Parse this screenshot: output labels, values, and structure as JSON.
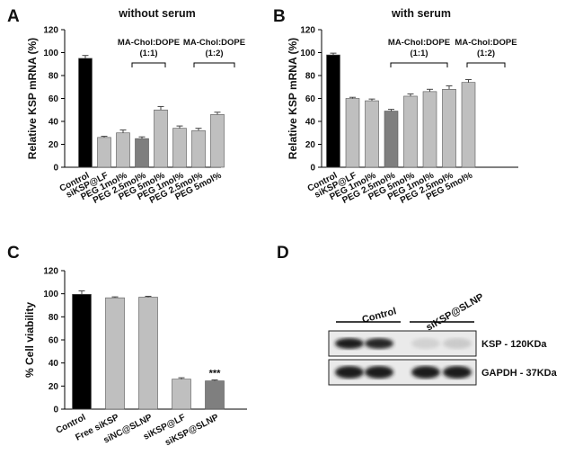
{
  "chart_data": [
    {
      "panel": "A",
      "type": "bar",
      "title": "without serum",
      "ylabel": "Relative KSP mRNA (%)",
      "ylim": [
        0,
        120
      ],
      "yticks": [
        0,
        20,
        40,
        60,
        80,
        100,
        120
      ],
      "categories": [
        "Control",
        "siKSP@LF",
        "PEG 1mol%",
        "PEG 2.5mol%",
        "PEG 5mol%",
        "PEG 1mol%",
        "PEG 2.5mol%",
        "PEG 5mol%"
      ],
      "values": [
        95,
        26,
        30,
        25,
        50,
        34,
        32,
        46
      ],
      "errors": [
        2.5,
        1,
        2.5,
        1.5,
        3,
        2,
        2,
        2
      ],
      "colors": [
        "#000000",
        "#bfbfbf",
        "#bfbfbf",
        "#7f7f7f",
        "#bfbfbf",
        "#bfbfbf",
        "#bfbfbf",
        "#bfbfbf"
      ],
      "groups": [
        {
          "label": "MA-Chol:DOPE",
          "sublabel": "(1:1)",
          "from": 2,
          "to": 4
        },
        {
          "label": "MA-Chol:DOPE",
          "sublabel": "(1:2)",
          "from": 5,
          "to": 7
        }
      ],
      "grid": false,
      "legend": "none"
    },
    {
      "panel": "B",
      "type": "bar",
      "title": "with serum",
      "ylabel": "Relative KSP mRNA (%)",
      "ylim": [
        0,
        120
      ],
      "yticks": [
        0,
        20,
        40,
        60,
        80,
        100,
        120
      ],
      "categories": [
        "Control",
        "siKSP@LF",
        "PEG 1mol%",
        "PEG 2.5mol%",
        "PEG 5mol%",
        "PEG 1mol%",
        "PEG 2.5mol%",
        "PEG 5mol%"
      ],
      "values": [
        98,
        60,
        58,
        49,
        62,
        66,
        68,
        74
      ],
      "errors": [
        1.5,
        1,
        1.5,
        1.5,
        2,
        2,
        3,
        2.5
      ],
      "colors": [
        "#000000",
        "#bfbfbf",
        "#bfbfbf",
        "#7f7f7f",
        "#bfbfbf",
        "#bfbfbf",
        "#bfbfbf",
        "#bfbfbf"
      ],
      "groups": [
        {
          "label": "MA-Chol:DOPE",
          "sublabel": "(1:1)",
          "from": 2,
          "to": 4
        },
        {
          "label": "MA-Chol:DOPE",
          "sublabel": "(1:2)",
          "from": 5,
          "to": 7
        }
      ],
      "grid": false,
      "legend": "none"
    },
    {
      "panel": "C",
      "type": "bar",
      "title": "",
      "ylabel": "% Cell viability",
      "ylim": [
        0,
        120
      ],
      "yticks": [
        0,
        20,
        40,
        60,
        80,
        100,
        120
      ],
      "categories": [
        "Control",
        "Free siKSP",
        "siNC@SLNP",
        "siKSP@LF",
        "siKSP@SLNP"
      ],
      "values": [
        99.5,
        96.5,
        97,
        26,
        24.5
      ],
      "errors": [
        3,
        0.8,
        0.8,
        1.2,
        0.8
      ],
      "colors": [
        "#000000",
        "#bfbfbf",
        "#bfbfbf",
        "#bfbfbf",
        "#7f7f7f"
      ],
      "annotations": [
        {
          "index": 4,
          "text": "***"
        }
      ],
      "grid": false,
      "legend": "none"
    }
  ],
  "blot": {
    "panel": "D",
    "groups": [
      "Control",
      "siKSP@SLNP"
    ],
    "bands": [
      {
        "label": "KSP - 120KDa",
        "intensities": [
          0.95,
          0.9,
          0.12,
          0.15
        ]
      },
      {
        "label": "GAPDH - 37KDa",
        "intensities": [
          0.95,
          0.95,
          0.95,
          0.95
        ]
      }
    ]
  }
}
